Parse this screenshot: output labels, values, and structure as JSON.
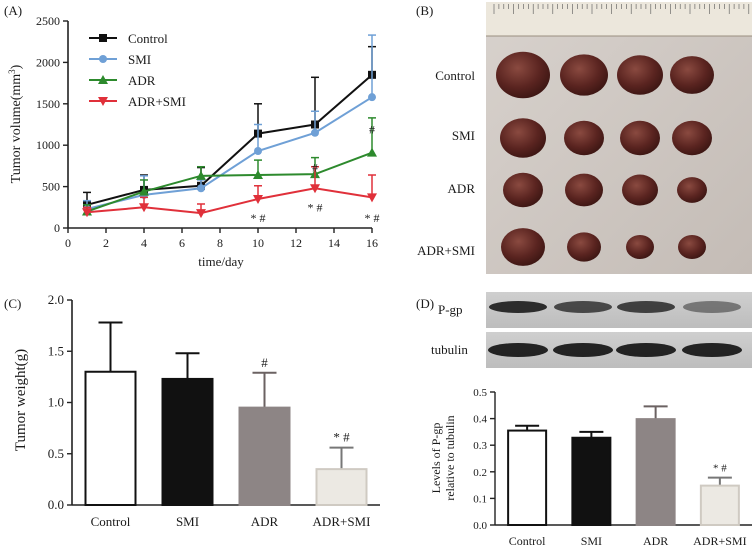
{
  "colors": {
    "control": "#111111",
    "smi": "#6fa0d6",
    "adr": "#2d8a2d",
    "adr_smi": "#e0303a",
    "bar_white": "#ffffff",
    "bar_black": "#111111",
    "bar_gray": "#8d8585",
    "bar_light": "#ece9e3"
  },
  "panels": {
    "a": "(A)",
    "b": "(B)",
    "c": "(C)",
    "d": "(D)"
  },
  "photo": {
    "row_labels": [
      "Control",
      "SMI",
      "ADR",
      "ADR+SMI"
    ]
  },
  "blot": {
    "labels": [
      "P-gp",
      "tubulin"
    ]
  },
  "chart_data": [
    {
      "id": "A",
      "type": "line",
      "xlabel": "time/day",
      "ylabel_main": "Tumor volume(mm",
      "ylabel_sup": "3",
      "ylabel_tail": ")",
      "xlim": [
        0,
        16
      ],
      "ylim": [
        0,
        2500
      ],
      "xticks": [
        0,
        2,
        4,
        6,
        8,
        10,
        12,
        14,
        16
      ],
      "yticks": [
        0,
        500,
        1000,
        1500,
        2000,
        2500
      ],
      "x": [
        1,
        4,
        7,
        10,
        13,
        16
      ],
      "series": [
        {
          "name": "Control",
          "marker": "square",
          "values": [
            280,
            460,
            510,
            1140,
            1250,
            1850
          ],
          "err": [
            150,
            180,
            220,
            360,
            570,
            340
          ]
        },
        {
          "name": "SMI",
          "marker": "circle",
          "values": [
            230,
            400,
            480,
            930,
            1150,
            1580
          ],
          "err": [
            100,
            230,
            100,
            320,
            260,
            750
          ]
        },
        {
          "name": "ADR",
          "marker": "triangle-up",
          "values": [
            200,
            440,
            630,
            640,
            650,
            910
          ],
          "err": [
            80,
            140,
            110,
            180,
            200,
            420
          ]
        },
        {
          "name": "ADR+SMI",
          "marker": "triangle-down",
          "values": [
            190,
            250,
            180,
            350,
            480,
            370
          ],
          "err": [
            60,
            120,
            110,
            160,
            260,
            270
          ]
        }
      ],
      "annotations": [
        {
          "x": 10,
          "y": 120,
          "text": "* #"
        },
        {
          "x": 13,
          "y": 730,
          "text": "#"
        },
        {
          "x": 13,
          "y": 250,
          "text": "* #"
        },
        {
          "x": 16,
          "y": 1190,
          "text": "#"
        },
        {
          "x": 16,
          "y": 120,
          "text": "* #"
        }
      ]
    },
    {
      "id": "C",
      "type": "bar",
      "ylabel": "Tumor weight(g)",
      "ylim": [
        0,
        2.0
      ],
      "yticks": [
        "0.0",
        "0.5",
        "1.0",
        "1.5",
        "2.0"
      ],
      "categories": [
        "Control",
        "SMI",
        "ADR",
        "ADR+SMI"
      ],
      "values": [
        1.3,
        1.23,
        0.95,
        0.35
      ],
      "err": [
        0.48,
        0.25,
        0.34,
        0.21
      ],
      "annotations": [
        "",
        "",
        "#",
        "* #"
      ]
    },
    {
      "id": "D",
      "type": "bar",
      "ylabel_line1": "Levels of P-gp",
      "ylabel_line2": "relative to tubulin",
      "ylim": [
        0,
        0.5
      ],
      "yticks": [
        "0.0",
        "0.1",
        "0.2",
        "0.3",
        "0.4",
        "0.5"
      ],
      "categories": [
        "Control",
        "SMI",
        "ADR",
        "ADR+SMI"
      ],
      "values": [
        0.355,
        0.328,
        0.398,
        0.148
      ],
      "err": [
        0.018,
        0.022,
        0.048,
        0.03
      ],
      "annotations": [
        "",
        "",
        "",
        "* #"
      ]
    }
  ]
}
